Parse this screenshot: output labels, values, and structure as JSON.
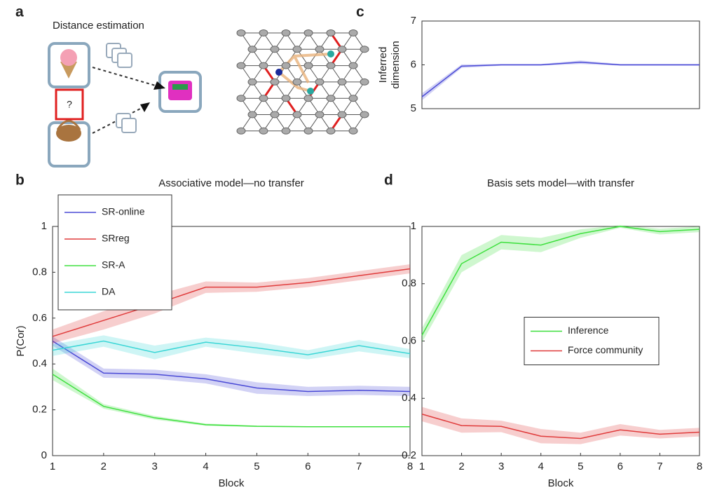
{
  "panel_a": {
    "label": "a",
    "title": "Distance estimation",
    "question": "?"
  },
  "chart_data": [
    {
      "type": "line",
      "panel_label": "c",
      "ylabel": [
        "Inferred",
        "dimension"
      ],
      "x": [
        1,
        2,
        3,
        4,
        5,
        6,
        7,
        8
      ],
      "xlim": [
        1,
        8
      ],
      "ylim": [
        5,
        7
      ],
      "yticks": [
        5,
        6,
        7
      ],
      "series": [
        {
          "name": null,
          "color": "#4a4ad6",
          "values": [
            5.27,
            5.97,
            6.0,
            6.0,
            6.06,
            6.0,
            6.0,
            6.0
          ],
          "errors": [
            0.08,
            0.04,
            0.02,
            0.02,
            0.04,
            0.02,
            0.02,
            0.02
          ]
        }
      ]
    },
    {
      "type": "line",
      "panel_label": "b",
      "title": "Associative model—no transfer",
      "xlabel": "Block",
      "ylabel": "P(Cor)",
      "x": [
        1,
        2,
        3,
        4,
        5,
        6,
        7,
        8
      ],
      "xlim": [
        1,
        8
      ],
      "xticks": [
        1,
        2,
        3,
        4,
        5,
        6,
        7,
        8
      ],
      "ylim": [
        0,
        1
      ],
      "yticks": [
        0,
        0.2,
        0.4,
        0.6,
        0.8,
        1
      ],
      "legend": "upper left",
      "series": [
        {
          "name": "SR-online",
          "color": "#4a4ad6",
          "values": [
            0.5,
            0.36,
            0.355,
            0.335,
            0.295,
            0.28,
            0.285,
            0.28
          ],
          "errors": [
            0.02,
            0.02,
            0.02,
            0.02,
            0.025,
            0.02,
            0.02,
            0.02
          ]
        },
        {
          "name": "SRreg",
          "color": "#e03c3c",
          "values": [
            0.52,
            0.59,
            0.66,
            0.735,
            0.735,
            0.755,
            0.785,
            0.815
          ],
          "errors": [
            0.03,
            0.04,
            0.04,
            0.025,
            0.02,
            0.02,
            0.02,
            0.02
          ]
        },
        {
          "name": "SR-A",
          "color": "#3ee03e",
          "values": [
            0.355,
            0.215,
            0.165,
            0.135,
            0.128,
            0.126,
            0.126,
            0.126
          ],
          "errors": [
            0.025,
            0.01,
            0.008,
            0.005,
            0.003,
            0.002,
            0.002,
            0.002
          ]
        },
        {
          "name": "DA",
          "color": "#3ad6d6",
          "values": [
            0.46,
            0.5,
            0.45,
            0.495,
            0.47,
            0.44,
            0.48,
            0.445
          ],
          "errors": [
            0.025,
            0.025,
            0.03,
            0.02,
            0.025,
            0.02,
            0.025,
            0.02
          ]
        }
      ]
    },
    {
      "type": "line",
      "panel_label": "d",
      "title": "Basis sets model—with transfer",
      "xlabel": "Block",
      "x": [
        1,
        2,
        3,
        4,
        5,
        6,
        7,
        8
      ],
      "xlim": [
        1,
        8
      ],
      "xticks": [
        1,
        2,
        3,
        4,
        5,
        6,
        7,
        8
      ],
      "ylim": [
        0.2,
        1
      ],
      "yticks": [
        0.2,
        0.4,
        0.6,
        0.8,
        1
      ],
      "legend": "center right",
      "series": [
        {
          "name": "Inference",
          "color": "#3ee03e",
          "values": [
            0.62,
            0.87,
            0.945,
            0.935,
            0.975,
            1.0,
            0.982,
            0.99
          ],
          "errors": [
            0.025,
            0.03,
            0.025,
            0.025,
            0.015,
            0.005,
            0.01,
            0.01
          ]
        },
        {
          "name": "Force community",
          "color": "#e03c3c",
          "values": [
            0.345,
            0.305,
            0.302,
            0.268,
            0.26,
            0.29,
            0.275,
            0.282
          ],
          "errors": [
            0.025,
            0.025,
            0.02,
            0.025,
            0.02,
            0.02,
            0.015,
            0.015
          ]
        }
      ]
    }
  ]
}
